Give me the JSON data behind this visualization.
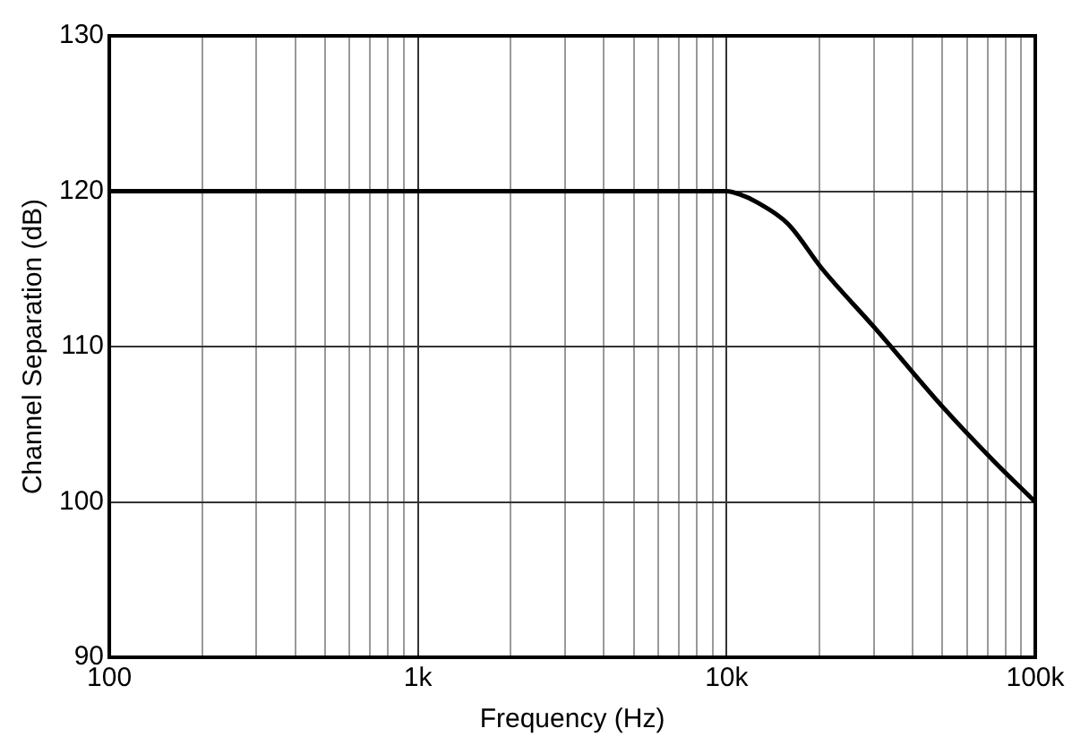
{
  "chart_data": {
    "type": "line",
    "xlabel": "Frequency (Hz)",
    "ylabel": "Channel Separation (dB)",
    "log": "x",
    "grid": true,
    "marker": "none",
    "line_style": "solid",
    "series": [
      {
        "color": "#000000",
        "x": [
          100,
          1000,
          10000,
          11000,
          12500,
          15800,
          20400,
          30200,
          50200,
          72800,
          100000
        ],
        "values": [
          120,
          120,
          120,
          119.8,
          119.3,
          117.9,
          115,
          111.2,
          106.1,
          102.7,
          100
        ]
      }
    ],
    "xlim": [
      100,
      100000
    ],
    "ylim": [
      90,
      130
    ],
    "xticks": [
      {
        "value": 100,
        "label": "100"
      },
      {
        "value": 200,
        "label": null
      },
      {
        "value": 300,
        "label": null
      },
      {
        "value": 400,
        "label": null
      },
      {
        "value": 500,
        "label": null
      },
      {
        "value": 600,
        "label": null
      },
      {
        "value": 700,
        "label": null
      },
      {
        "value": 800,
        "label": null
      },
      {
        "value": 900,
        "label": null
      },
      {
        "value": 1000,
        "label": "1k"
      },
      {
        "value": 2000,
        "label": null
      },
      {
        "value": 3000,
        "label": null
      },
      {
        "value": 4000,
        "label": null
      },
      {
        "value": 5000,
        "label": null
      },
      {
        "value": 6000,
        "label": null
      },
      {
        "value": 7000,
        "label": null
      },
      {
        "value": 8000,
        "label": null
      },
      {
        "value": 9000,
        "label": null
      },
      {
        "value": 10000,
        "label": "10k"
      },
      {
        "value": 20000,
        "label": null
      },
      {
        "value": 30000,
        "label": null
      },
      {
        "value": 40000,
        "label": null
      },
      {
        "value": 50000,
        "label": null
      },
      {
        "value": 60000,
        "label": null
      },
      {
        "value": 70000,
        "label": null
      },
      {
        "value": 80000,
        "label": null
      },
      {
        "value": 90000,
        "label": null
      },
      {
        "value": 100000,
        "label": "100k"
      }
    ],
    "yticks": [
      90,
      100,
      110,
      120,
      130
    ]
  }
}
